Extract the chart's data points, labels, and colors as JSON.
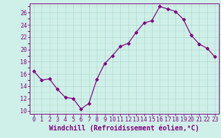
{
  "x": [
    0,
    1,
    2,
    3,
    4,
    5,
    6,
    7,
    8,
    9,
    10,
    11,
    12,
    13,
    14,
    15,
    16,
    17,
    18,
    19,
    20,
    21,
    22,
    23
  ],
  "y": [
    16.5,
    15.0,
    15.2,
    13.5,
    12.2,
    12.0,
    10.3,
    11.2,
    15.1,
    17.7,
    19.0,
    20.5,
    21.0,
    22.8,
    24.3,
    24.7,
    27.0,
    26.6,
    26.2,
    24.9,
    22.3,
    20.9,
    20.2,
    18.8
  ],
  "line_color": "#800080",
  "marker": "D",
  "markersize": 2.5,
  "bg_color": "#cff0e8",
  "grid_color": "#b0d8cc",
  "xlabel": "Windchill (Refroidissement éolien,°C)",
  "ylabel_ticks": [
    10,
    12,
    14,
    16,
    18,
    20,
    22,
    24,
    26
  ],
  "xlim": [
    -0.5,
    23.5
  ],
  "ylim": [
    9.5,
    27.5
  ],
  "xtick_labels": [
    "0",
    "1",
    "2",
    "3",
    "4",
    "5",
    "6",
    "7",
    "8",
    "9",
    "10",
    "11",
    "12",
    "13",
    "14",
    "15",
    "16",
    "17",
    "18",
    "19",
    "20",
    "21",
    "22",
    "23"
  ],
  "tick_fontsize": 6.0,
  "xlabel_fontsize": 7.0
}
